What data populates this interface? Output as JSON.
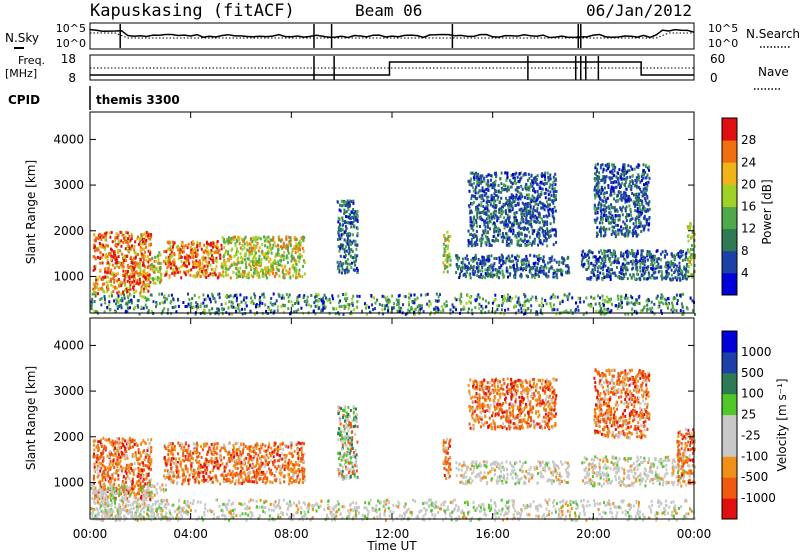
{
  "header": {
    "station": "Kapuskasing (fitACF)",
    "beam": "Beam 06",
    "date": "06/Jan/2012",
    "program": "themis 3300"
  },
  "top_panels": {
    "nsky_label": "N.Sky",
    "nsearch_label": "N.Search",
    "noise_ticks": [
      "10^5",
      "10^0"
    ],
    "freq_label": "Freq.",
    "freq_unit": "[MHz]",
    "freq_ticks": [
      "18",
      "8"
    ],
    "nave_label": "Nave",
    "nave_ticks": [
      "60",
      "0"
    ],
    "cpid_label": "CPID"
  },
  "x_axis": {
    "label": "Time UT",
    "ticks": [
      "00:00",
      "04:00",
      "08:00",
      "12:00",
      "16:00",
      "20:00",
      "00:00"
    ],
    "range_hours": [
      0,
      24
    ]
  },
  "chart_data": [
    {
      "type": "heatmap",
      "xlabel": "Time UT",
      "ylabel": "Slant Range [km]",
      "ylim": [
        200,
        4600
      ],
      "yticks": [
        "4000",
        "3000",
        "2000",
        "1000"
      ],
      "colorbar": {
        "label": "Power [dB]",
        "ticks": [
          "28",
          "24",
          "20",
          "16",
          "12",
          "8",
          "4"
        ],
        "range": [
          0,
          30
        ],
        "colors": [
          "#0000d8",
          "#1c3fa8",
          "#2d7a55",
          "#4fa84a",
          "#9ed226",
          "#f0b418",
          "#f07010",
          "#e01010"
        ]
      },
      "regions": [
        {
          "t": [
            0.1,
            2.4
          ],
          "r": [
            650,
            2000
          ],
          "level": "high"
        },
        {
          "t": [
            2.4,
            2.8
          ],
          "r": [
            850,
            1600
          ],
          "level": "medium"
        },
        {
          "t": [
            2.9,
            5.2
          ],
          "r": [
            1000,
            1800
          ],
          "level": "high"
        },
        {
          "t": [
            5.2,
            8.5
          ],
          "r": [
            1000,
            1900
          ],
          "level": "medium"
        },
        {
          "t": [
            9.8,
            10.6
          ],
          "r": [
            1100,
            2700
          ],
          "level": "low"
        },
        {
          "t": [
            14.0,
            14.3
          ],
          "r": [
            1100,
            2000
          ],
          "level": "medium"
        },
        {
          "t": [
            14.5,
            19.0
          ],
          "r": [
            1000,
            1500
          ],
          "level": "low"
        },
        {
          "t": [
            15.0,
            18.5
          ],
          "r": [
            1700,
            3300
          ],
          "level": "low"
        },
        {
          "t": [
            19.5,
            23.7
          ],
          "r": [
            950,
            1600
          ],
          "level": "low"
        },
        {
          "t": [
            20.0,
            22.2
          ],
          "r": [
            1900,
            3500
          ],
          "level": "low"
        },
        {
          "t": [
            23.7,
            24.0
          ],
          "r": [
            1000,
            2200
          ],
          "level": "medium"
        },
        {
          "t": [
            0.0,
            24.0
          ],
          "r": [
            200,
            650
          ],
          "level": "ground"
        }
      ]
    },
    {
      "type": "heatmap",
      "xlabel": "Time UT",
      "ylabel": "Slant Range [km]",
      "ylim": [
        200,
        4600
      ],
      "yticks": [
        "4000",
        "3000",
        "2000",
        "1000"
      ],
      "colorbar": {
        "label": "Velocity [m s⁻¹]",
        "ticks": [
          "1000",
          "500",
          "100",
          "25",
          "-25",
          "-100",
          "-500",
          "-1000"
        ],
        "range": [
          -1000,
          1000
        ],
        "colors": [
          "#e01010",
          "#f05a10",
          "#f09018",
          "#c8c8c8",
          "#c8c8c8",
          "#4fc828",
          "#2d7a55",
          "#1c3fa8",
          "#0000d8"
        ]
      },
      "regions": [
        {
          "t": [
            0.1,
            2.4
          ],
          "r": [
            650,
            2000
          ],
          "level": "toward"
        },
        {
          "t": [
            2.9,
            8.5
          ],
          "r": [
            1000,
            1900
          ],
          "level": "toward"
        },
        {
          "t": [
            0.0,
            3.0
          ],
          "r": [
            200,
            1000
          ],
          "level": "ground"
        },
        {
          "t": [
            9.8,
            10.6
          ],
          "r": [
            1100,
            2700
          ],
          "level": "mixed"
        },
        {
          "t": [
            14.0,
            14.3
          ],
          "r": [
            1100,
            2000
          ],
          "level": "toward"
        },
        {
          "t": [
            14.5,
            19.0
          ],
          "r": [
            1000,
            1500
          ],
          "level": "ground"
        },
        {
          "t": [
            15.0,
            18.5
          ],
          "r": [
            2200,
            3300
          ],
          "level": "toward"
        },
        {
          "t": [
            19.5,
            23.7
          ],
          "r": [
            950,
            1600
          ],
          "level": "ground"
        },
        {
          "t": [
            20.0,
            22.2
          ],
          "r": [
            2000,
            3500
          ],
          "level": "toward"
        },
        {
          "t": [
            23.3,
            24.0
          ],
          "r": [
            1000,
            2200
          ],
          "level": "toward"
        },
        {
          "t": [
            0.0,
            24.0
          ],
          "r": [
            200,
            650
          ],
          "level": "ground"
        }
      ]
    }
  ]
}
